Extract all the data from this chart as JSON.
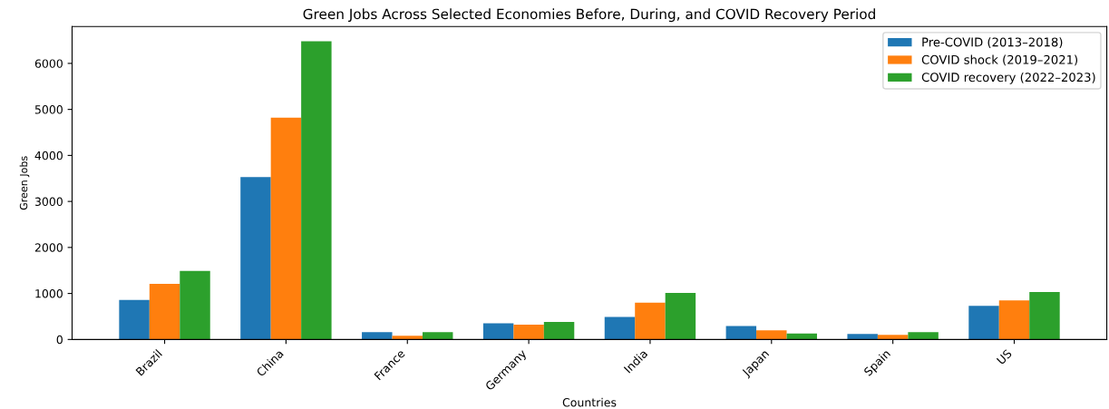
{
  "chart_data": {
    "type": "bar",
    "title": "Green Jobs Across Selected Economies Before, During, and COVID Recovery Period",
    "xlabel": "Countries",
    "ylabel": "Green Jobs",
    "categories": [
      "Brazil",
      "China",
      "France",
      "Germany",
      "India",
      "Japan",
      "Spain",
      "US"
    ],
    "series": [
      {
        "name": "Pre-COVID (2013–2018)",
        "color": "#1f77b4",
        "values": [
          860,
          3530,
          160,
          350,
          490,
          290,
          120,
          730
        ]
      },
      {
        "name": "COVID shock (2019–2021)",
        "color": "#ff7f0e",
        "values": [
          1210,
          4820,
          80,
          320,
          800,
          200,
          100,
          850
        ]
      },
      {
        "name": "COVID recovery (2022–2023)",
        "color": "#2ca02c",
        "values": [
          1490,
          6480,
          160,
          380,
          1010,
          130,
          160,
          1030
        ]
      }
    ],
    "ylim": [
      0,
      6800
    ],
    "yticks": [
      0,
      1000,
      2000,
      3000,
      4000,
      5000,
      6000
    ],
    "grid": false,
    "legend": "top right"
  }
}
